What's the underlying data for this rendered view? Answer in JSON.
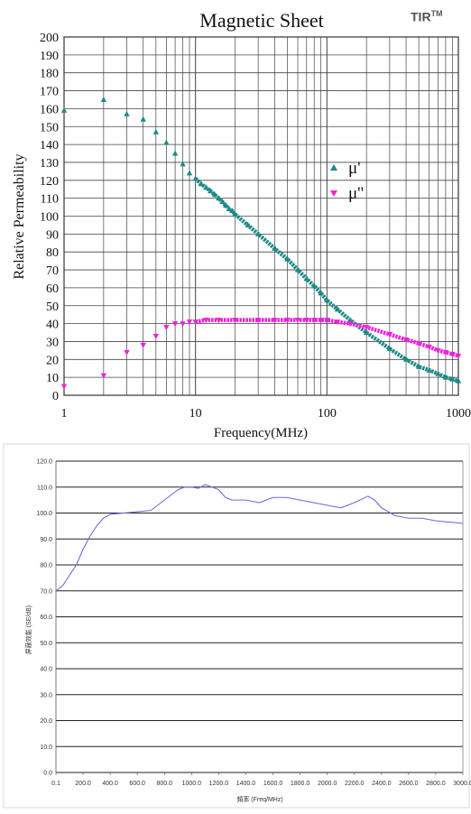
{
  "brand": {
    "name": "TIR",
    "mark": "TM"
  },
  "chart_data": [
    {
      "type": "scatter",
      "title": "Magnetic Sheet",
      "xlabel": "Frequency(MHz)",
      "ylabel": "Relative Permeability",
      "x_scale": "log",
      "xlim": [
        1,
        1000
      ],
      "ylim": [
        0,
        200
      ],
      "x_tick_labels": [
        "1",
        "10",
        "100",
        "1000"
      ],
      "y_tick_labels": [
        "0",
        "10",
        "20",
        "30",
        "40",
        "50",
        "60",
        "70",
        "80",
        "90",
        "100",
        "110",
        "120",
        "130",
        "140",
        "150",
        "160",
        "170",
        "180",
        "190",
        "200"
      ],
      "grid": true,
      "legend_position": "right",
      "series": [
        {
          "name": "μ'",
          "color": "#1f8a86",
          "marker": "triangle-up",
          "points": [
            [
              1,
              159
            ],
            [
              2,
              165
            ],
            [
              3,
              157
            ],
            [
              4,
              154
            ],
            [
              5,
              147
            ],
            [
              6,
              141
            ],
            [
              7,
              135
            ],
            [
              8,
              129
            ],
            [
              9,
              124
            ],
            [
              10,
              121
            ],
            [
              11,
              118
            ],
            [
              12,
              116
            ],
            [
              13,
              114
            ],
            [
              14,
              112
            ],
            [
              15,
              110
            ],
            [
              16,
              108
            ],
            [
              17,
              106
            ],
            [
              18,
              104
            ],
            [
              19,
              103
            ],
            [
              20,
              101
            ],
            [
              25,
              95
            ],
            [
              30,
              90
            ],
            [
              40,
              82
            ],
            [
              50,
              76
            ],
            [
              60,
              70
            ],
            [
              70,
              65
            ],
            [
              80,
              61
            ],
            [
              90,
              57
            ],
            [
              100,
              53
            ],
            [
              120,
              48
            ],
            [
              150,
              42
            ],
            [
              200,
              35
            ],
            [
              300,
              26
            ],
            [
              400,
              20
            ],
            [
              500,
              16
            ],
            [
              600,
              14
            ],
            [
              700,
              12
            ],
            [
              800,
              10
            ],
            [
              900,
              9
            ],
            [
              1000,
              8
            ]
          ]
        },
        {
          "name": "μ''",
          "color": "#ee22dd",
          "marker": "triangle-down",
          "points": [
            [
              1,
              5
            ],
            [
              2,
              11
            ],
            [
              3,
              24
            ],
            [
              4,
              28
            ],
            [
              5,
              33
            ],
            [
              6,
              38
            ],
            [
              7,
              40
            ],
            [
              8,
              40
            ],
            [
              9,
              41
            ],
            [
              10,
              41
            ],
            [
              12,
              42
            ],
            [
              15,
              42
            ],
            [
              20,
              42
            ],
            [
              30,
              42
            ],
            [
              40,
              42
            ],
            [
              50,
              42
            ],
            [
              60,
              42
            ],
            [
              70,
              42
            ],
            [
              80,
              42
            ],
            [
              90,
              42
            ],
            [
              100,
              42
            ],
            [
              120,
              41
            ],
            [
              150,
              40
            ],
            [
              200,
              38
            ],
            [
              300,
              34
            ],
            [
              400,
              31
            ],
            [
              500,
              29
            ],
            [
              600,
              27
            ],
            [
              700,
              25
            ],
            [
              800,
              24
            ],
            [
              900,
              23
            ],
            [
              1000,
              22
            ]
          ]
        }
      ]
    },
    {
      "type": "line",
      "xlabel": "頻率 (Freq/MHz)",
      "ylabel": "屏蔽效能 (SE/dB)",
      "xlim": [
        0.1,
        3000
      ],
      "ylim": [
        0,
        120
      ],
      "x_tick_labels": [
        "0.1",
        "200.0",
        "400.0",
        "600.0",
        "800.0",
        "1000.0",
        "1200.0",
        "1400.0",
        "1600.0",
        "1800.0",
        "2000.0",
        "2200.0",
        "2400.0",
        "2600.0",
        "2800.0",
        "3000.0"
      ],
      "y_tick_labels": [
        "0.0",
        "10.0",
        "20.0",
        "30.0",
        "40.0",
        "50.0",
        "60.0",
        "70.0",
        "80.0",
        "90.0",
        "100.0",
        "110.0",
        "120.0"
      ],
      "grid": true,
      "series": [
        {
          "color": "#6b6bd6",
          "points": [
            [
              0.1,
              70
            ],
            [
              50,
              72
            ],
            [
              100,
              76
            ],
            [
              150,
              80
            ],
            [
              200,
              86
            ],
            [
              250,
              91
            ],
            [
              300,
              95
            ],
            [
              350,
              98
            ],
            [
              400,
              99.5
            ],
            [
              500,
              100
            ],
            [
              600,
              100.5
            ],
            [
              700,
              101
            ],
            [
              750,
              103
            ],
            [
              800,
              105
            ],
            [
              850,
              107
            ],
            [
              900,
              109
            ],
            [
              950,
              110
            ],
            [
              1000,
              110
            ],
            [
              1050,
              109.5
            ],
            [
              1100,
              111
            ],
            [
              1150,
              110
            ],
            [
              1200,
              109
            ],
            [
              1250,
              106
            ],
            [
              1300,
              105
            ],
            [
              1400,
              105
            ],
            [
              1500,
              104
            ],
            [
              1600,
              106
            ],
            [
              1700,
              106
            ],
            [
              1800,
              105
            ],
            [
              1900,
              104
            ],
            [
              2000,
              103
            ],
            [
              2100,
              102
            ],
            [
              2200,
              104
            ],
            [
              2300,
              106.5
            ],
            [
              2350,
              105
            ],
            [
              2400,
              102
            ],
            [
              2500,
              99
            ],
            [
              2600,
              98
            ],
            [
              2700,
              98
            ],
            [
              2800,
              97
            ],
            [
              2900,
              96.5
            ],
            [
              3000,
              96
            ]
          ]
        }
      ]
    }
  ]
}
